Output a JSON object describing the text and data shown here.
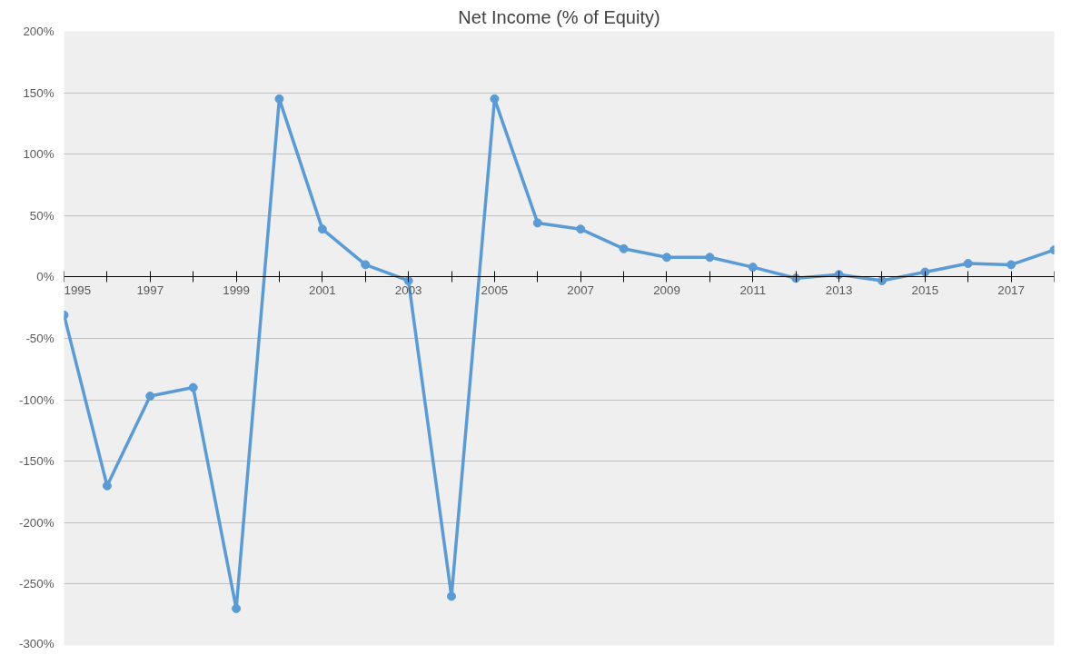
{
  "chart_data": {
    "type": "line",
    "title": "Net Income (% of Equity)",
    "x": [
      1995,
      1996,
      1997,
      1998,
      1999,
      2000,
      2001,
      2002,
      2003,
      2004,
      2005,
      2006,
      2007,
      2008,
      2009,
      2010,
      2011,
      2012,
      2013,
      2014,
      2015,
      2016,
      2017,
      2018
    ],
    "series": [
      {
        "color": "#5b9bd5",
        "values": [
          -31,
          -170,
          -97,
          -90,
          -270,
          145,
          39,
          10,
          -3,
          -260,
          145,
          44,
          39,
          23,
          16,
          16,
          8,
          -1,
          2,
          -3,
          4,
          11,
          10,
          22
        ]
      }
    ],
    "xlim": [
      1995,
      2018
    ],
    "xticks": [
      1995,
      {
        "value": 1996,
        "label": null
      },
      1997,
      {
        "value": 1998,
        "label": null
      },
      1999,
      {
        "value": 2000,
        "label": null
      },
      2001,
      {
        "value": 2002,
        "label": null
      },
      2003,
      {
        "value": 2004,
        "label": null
      },
      2005,
      {
        "value": 2006,
        "label": null
      },
      2007,
      {
        "value": 2008,
        "label": null
      },
      2009,
      {
        "value": 2010,
        "label": null
      },
      2011,
      {
        "value": 2012,
        "label": null
      },
      2013,
      {
        "value": 2014,
        "label": null
      },
      2015,
      {
        "value": 2016,
        "label": null
      },
      2017,
      {
        "value": 2018,
        "label": null
      }
    ],
    "ylim": [
      -300,
      200
    ],
    "yticks": [
      {
        "value": -300,
        "label": "-300%"
      },
      {
        "value": -250,
        "label": "-250%"
      },
      {
        "value": -200,
        "label": "-200%"
      },
      {
        "value": -150,
        "label": "-150%"
      },
      {
        "value": -100,
        "label": "-100%"
      },
      {
        "value": -50,
        "label": "-50%"
      },
      {
        "value": 0,
        "label": "0%"
      },
      {
        "value": 50,
        "label": "50%"
      },
      {
        "value": 100,
        "label": "100%"
      },
      {
        "value": 150,
        "label": "150%"
      },
      {
        "value": 200,
        "label": "200%"
      }
    ],
    "grid": "y",
    "marker": "circle",
    "line_style": "solid"
  }
}
